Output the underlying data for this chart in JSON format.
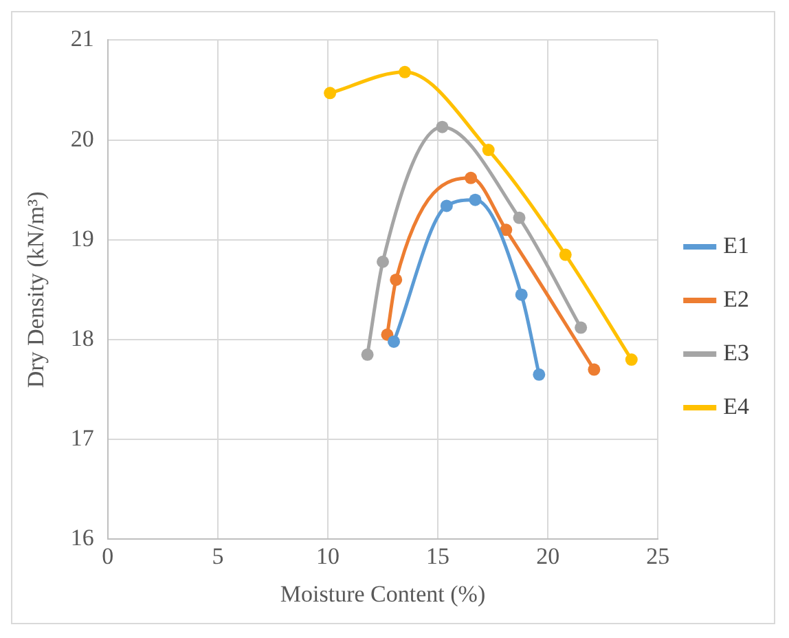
{
  "chart_data": {
    "type": "line",
    "xlabel": "Moisture Content (%)",
    "ylabel": "Dry Density (kN/m³)",
    "xlim": [
      0,
      25
    ],
    "xticks": [
      0,
      5,
      10,
      15,
      20,
      25
    ],
    "ylim": [
      16,
      21
    ],
    "yticks": [
      16,
      17,
      18,
      19,
      20,
      21
    ],
    "grid": true,
    "legend": "right",
    "marker": "circle",
    "line_style": "solid",
    "series": [
      {
        "name": "E1",
        "color": "#5b9bd5",
        "x": [
          13.0,
          15.4,
          16.7,
          18.8,
          19.6
        ],
        "values": [
          17.98,
          19.34,
          19.4,
          18.45,
          17.65
        ]
      },
      {
        "name": "E2",
        "color": "#ed7d31",
        "x": [
          12.7,
          13.1,
          16.5,
          18.1,
          22.1
        ],
        "values": [
          18.05,
          18.6,
          19.62,
          19.1,
          17.7
        ]
      },
      {
        "name": "E3",
        "color": "#a5a5a5",
        "x": [
          11.8,
          12.5,
          15.2,
          18.7,
          21.5
        ],
        "values": [
          17.85,
          18.78,
          20.13,
          19.22,
          18.12
        ]
      },
      {
        "name": "E4",
        "color": "#ffc000",
        "x": [
          10.1,
          13.5,
          17.3,
          20.8,
          23.8
        ],
        "values": [
          20.47,
          20.68,
          19.9,
          18.85,
          17.8
        ]
      }
    ]
  }
}
